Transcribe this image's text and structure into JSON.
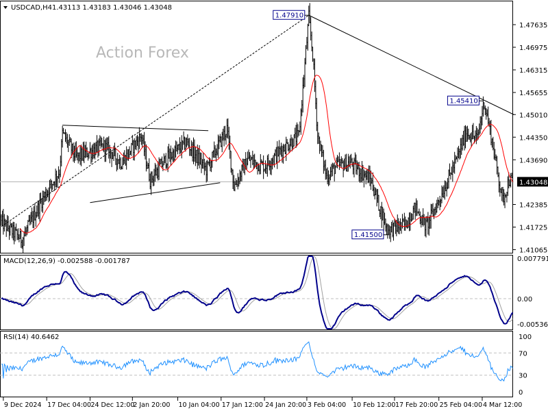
{
  "header": {
    "arrow_icon": "triangle-down-icon",
    "symbol": "USDCAD,H4",
    "ohlc": "1.43113 1.43183 1.43046 1.43048"
  },
  "watermark": "Action Forex",
  "colors": {
    "candles": "#000000",
    "ma": "#ff0000",
    "macd": "#00008b",
    "signal": "#a0a0a0",
    "rsi": "#1e90ff",
    "grid_dash": "#c0c0c0"
  },
  "chart_data": {
    "type": "ohlc",
    "symbol": "USDCAD",
    "timeframe": "H4",
    "bar_count": 520,
    "close_anchors": [
      [
        0,
        1.4186
      ],
      [
        21,
        1.4136
      ],
      [
        42,
        1.4256
      ],
      [
        59,
        1.4336
      ],
      [
        62,
        1.4446
      ],
      [
        76,
        1.4376
      ],
      [
        104,
        1.441
      ],
      [
        122,
        1.436
      ],
      [
        142,
        1.444
      ],
      [
        151,
        1.431
      ],
      [
        167,
        1.437
      ],
      [
        188,
        1.442
      ],
      [
        208,
        1.434
      ],
      [
        229,
        1.446
      ],
      [
        236,
        1.429
      ],
      [
        250,
        1.437
      ],
      [
        267,
        1.435
      ],
      [
        285,
        1.44
      ],
      [
        302,
        1.444
      ],
      [
        312,
        1.4785
      ],
      [
        316,
        1.4676
      ],
      [
        321,
        1.444
      ],
      [
        330,
        1.432
      ],
      [
        340,
        1.435
      ],
      [
        354,
        1.436
      ],
      [
        375,
        1.431
      ],
      [
        385,
        1.422
      ],
      [
        392,
        1.4164
      ],
      [
        410,
        1.418
      ],
      [
        420,
        1.423
      ],
      [
        431,
        1.4174
      ],
      [
        444,
        1.425
      ],
      [
        462,
        1.437
      ],
      [
        472,
        1.445
      ],
      [
        483,
        1.443
      ],
      [
        490,
        1.454
      ],
      [
        497,
        1.444
      ],
      [
        503,
        1.434
      ],
      [
        509,
        1.425
      ],
      [
        515,
        1.431
      ],
      [
        519,
        1.43048
      ]
    ],
    "current_price": 1.43048,
    "price_axis": {
      "min": 1.41065,
      "max": 1.47635,
      "ticks": [
        "1.47635",
        "1.46975",
        "1.46315",
        "1.45655",
        "1.45010",
        "1.44350",
        "1.43690",
        "1.42385",
        "1.41725",
        "1.41065"
      ],
      "current_label": "1.43048"
    },
    "time_axis": {
      "ticks": [
        {
          "bar": 2,
          "label": "9 Dec 2024"
        },
        {
          "bar": 46,
          "label": "17 Dec 04:00"
        },
        {
          "bar": 90,
          "label": "24 Dec 12:00"
        },
        {
          "bar": 133,
          "label": "2 Jan 20:00"
        },
        {
          "bar": 179,
          "label": "10 Jan 04:00"
        },
        {
          "bar": 223,
          "label": "17 Jan 12:00"
        },
        {
          "bar": 267,
          "label": "24 Jan 20:00"
        },
        {
          "bar": 310,
          "label": "3 Feb 04:00"
        },
        {
          "bar": 356,
          "label": "10 Feb 12:00"
        },
        {
          "bar": 399,
          "label": "17 Feb 20:00"
        },
        {
          "bar": 444,
          "label": "25 Feb 04:00"
        },
        {
          "bar": 488,
          "label": "4 Mar 12:00"
        }
      ]
    },
    "moving_average": {
      "period": 20,
      "color": "red"
    },
    "annotations": [
      {
        "label": "1.47910",
        "bar": 312,
        "price": 1.4791
      },
      {
        "label": "1.45410",
        "bar": 489,
        "price": 1.4541
      },
      {
        "label": "1.41500",
        "bar": 392,
        "price": 1.415
      }
    ],
    "trendlines": [
      {
        "from": [
          0,
          1.4174
        ],
        "to": [
          312,
          1.4791
        ],
        "style": "dashed"
      },
      {
        "from": [
          312,
          1.4791
        ],
        "to": [
          520,
          1.4501
        ],
        "style": "solid"
      },
      {
        "from": [
          62,
          1.447
        ],
        "to": [
          210,
          1.4454
        ],
        "style": "solid"
      },
      {
        "from": [
          90,
          1.4244
        ],
        "to": [
          222,
          1.4302
        ],
        "style": "solid"
      }
    ],
    "macd": {
      "title": "MACD(12,26,9) -0.002588 -0.001787",
      "max_label": "0.007791",
      "zero_label": "0.00",
      "min_label": "-0.005367",
      "max": 0.007791,
      "min": -0.005367
    },
    "rsi": {
      "title": "RSI(14) 40.6462",
      "levels": [
        "100",
        "70",
        "30",
        "0"
      ]
    }
  }
}
